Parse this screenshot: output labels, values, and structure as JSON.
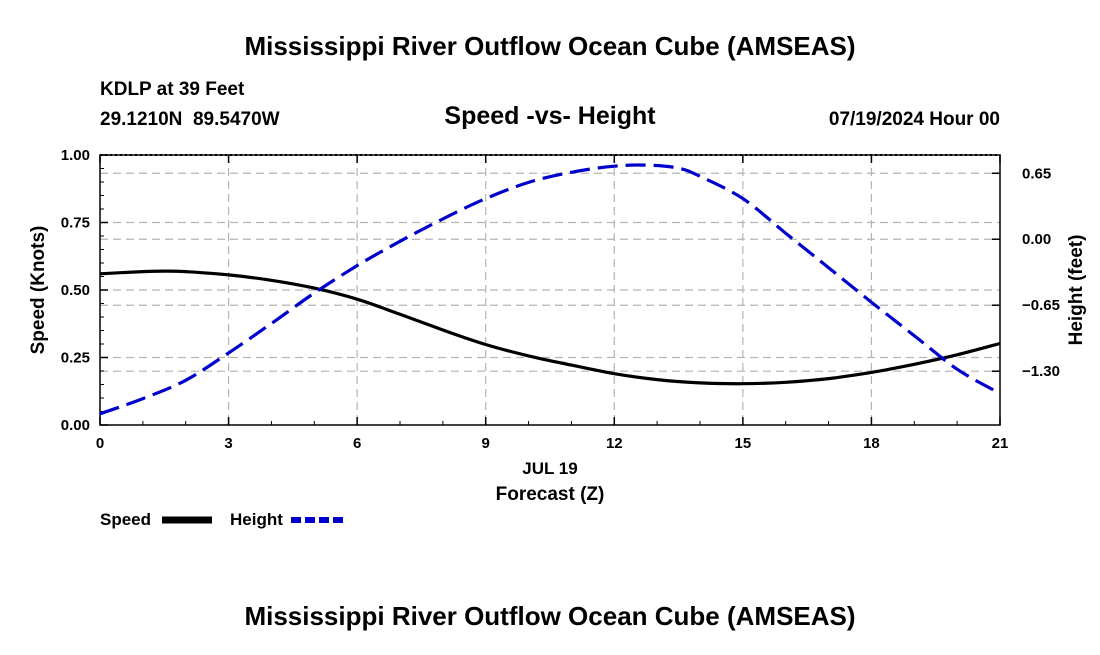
{
  "header": {
    "title": "Mississippi River Outflow Ocean Cube (AMSEAS)",
    "station": "KDLP at 39 Feet",
    "coords": "29.1210N  89.5470W",
    "subtitle": "Speed -vs- Height",
    "date": "07/19/2024 Hour 00",
    "footer_title": "Mississippi River Outflow Ocean Cube (AMSEAS)"
  },
  "legend": {
    "speed_label": "Speed",
    "height_label": "Height"
  },
  "colors": {
    "speed": "#000000",
    "height": "#0000cc",
    "grid": "#b4b4b4"
  },
  "chart_data": {
    "type": "line",
    "title": "Speed -vs- Height",
    "xlabel": "Forecast (Z)",
    "date_label": "JUL 19",
    "ylabel_left": "Speed (Knots)",
    "ylabel_right": "Height (feet)",
    "xlim": [
      0,
      21
    ],
    "ylim_left": [
      0,
      1.0
    ],
    "ylim_right": [
      -1.83,
      0.83
    ],
    "x_ticks": [
      0,
      3,
      6,
      9,
      12,
      15,
      18,
      21
    ],
    "x_tick_labels": [
      "0",
      "3",
      "6",
      "9",
      "12",
      "15",
      "18",
      "21"
    ],
    "y_left_ticks": [
      0,
      0.25,
      0.5,
      0.75,
      1.0
    ],
    "y_left_tick_labels": [
      "0.00",
      "0.25",
      "0.50",
      "0.75",
      "1.00"
    ],
    "y_right_ticks": [
      0.65,
      0.0,
      -0.65,
      -1.3
    ],
    "y_right_tick_labels": [
      "0.65",
      "0.00",
      "−0.65",
      "−1.30"
    ],
    "grid": true,
    "series": [
      {
        "name": "Speed",
        "axis": "left",
        "style": "solid",
        "x": [
          0,
          1,
          1.5,
          2,
          3,
          4,
          5,
          6,
          7,
          8,
          9,
          10,
          11,
          12,
          13,
          14,
          15,
          16,
          17,
          18,
          19,
          20,
          21
        ],
        "values": [
          0.56,
          0.568,
          0.57,
          0.568,
          0.556,
          0.536,
          0.507,
          0.466,
          0.41,
          0.352,
          0.298,
          0.256,
          0.222,
          0.19,
          0.168,
          0.156,
          0.153,
          0.158,
          0.172,
          0.195,
          0.225,
          0.26,
          0.302
        ]
      },
      {
        "name": "Height",
        "axis": "right",
        "style": "dashed",
        "x": [
          0,
          1,
          2,
          3,
          4,
          5,
          6,
          7,
          8,
          9,
          10,
          11,
          12,
          12.8,
          13.5,
          14,
          15,
          16,
          17,
          18,
          19,
          20,
          21
        ],
        "values": [
          -1.72,
          -1.57,
          -1.39,
          -1.12,
          -0.83,
          -0.53,
          -0.26,
          -0.02,
          0.2,
          0.4,
          0.56,
          0.66,
          0.72,
          0.73,
          0.7,
          0.62,
          0.4,
          0.06,
          -0.28,
          -0.62,
          -0.95,
          -1.28,
          -1.52
        ]
      }
    ]
  }
}
